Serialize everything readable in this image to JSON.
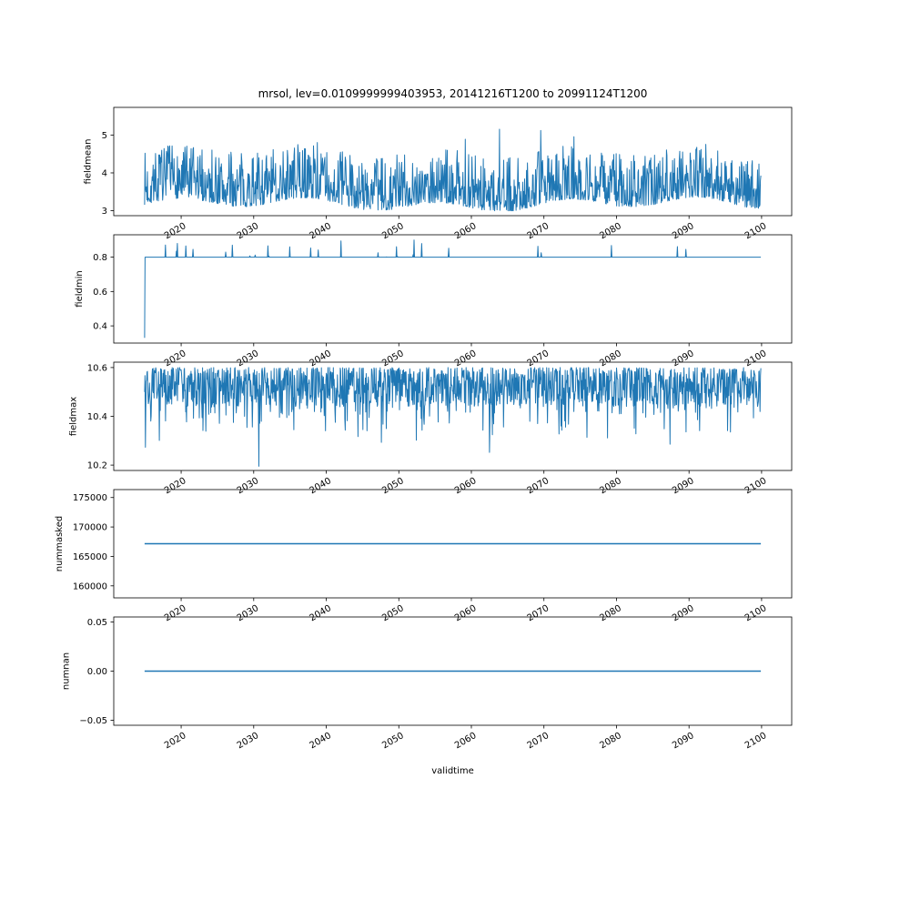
{
  "figure": {
    "title": "mrsol, lev=0.0109999999403953, 20141216T1200 to 20991124T1200",
    "xlabel": "validtime",
    "line_color": "#1f77b4",
    "background_color": "#ffffff",
    "text_color": "#000000",
    "x_axis": {
      "xlim": [
        2010.71,
        2104.15
      ],
      "ticks": [
        2020,
        2030,
        2040,
        2050,
        2060,
        2070,
        2080,
        2090,
        2100
      ],
      "tick_labels": [
        "2020",
        "2030",
        "2040",
        "2050",
        "2060",
        "2070",
        "2080",
        "2090",
        "2100"
      ],
      "data_start": 2014.96,
      "data_end": 2099.9
    }
  },
  "chart_data": [
    {
      "type": "line",
      "ylabel": "fieldmean",
      "yticks": [
        3,
        4,
        5
      ],
      "ytick_labels": [
        "3",
        "4",
        "5"
      ],
      "ylim": [
        2.87,
        5.73
      ],
      "summary": {
        "y_min": 3.0,
        "y_max": 5.6,
        "y_typical": 3.8,
        "shape": "dense noisy time series between ~3.0 and ~4.8 with occasional peaks to ~5.6"
      },
      "series": [
        {
          "name": "fieldmean",
          "gen": {
            "kind": "noisy",
            "seed": 7,
            "n": 1300,
            "base": 3.16,
            "amp": 1.42,
            "pow": 1.9,
            "slow_amp": 0.13,
            "spike_prob": 0.035,
            "spike_amp": 1.0,
            "clip_min": 3.0,
            "clip_max": 5.62
          }
        }
      ]
    },
    {
      "type": "line",
      "ylabel": "fieldmin",
      "yticks": [
        0.4,
        0.6,
        0.8
      ],
      "ytick_labels": [
        "0.4",
        "0.6",
        "0.8"
      ],
      "ylim": [
        0.3,
        0.93
      ],
      "summary": {
        "start_value": 0.33,
        "flat_value": 0.8,
        "spike_max": 0.9,
        "shape": "starts at ~0.33, jumps to 0.8, then flat at 0.8 with sparse short upward spikes up to ~0.9"
      },
      "series": [
        {
          "name": "fieldmin",
          "gen": {
            "kind": "flat_spikes",
            "seed": 11,
            "n": 1300,
            "start_value": 0.33,
            "flat": 0.8,
            "spike_prob": 0.018,
            "spike_amp": 0.08,
            "big_spike_prob": 0.004,
            "big_spike_amp": 0.1,
            "clip_max": 0.9
          }
        }
      ]
    },
    {
      "type": "line",
      "ylabel": "fieldmax",
      "yticks": [
        10.2,
        10.4,
        10.6
      ],
      "ytick_labels": [
        "10.2",
        "10.4",
        "10.6"
      ],
      "ylim": [
        10.178,
        10.622
      ],
      "summary": {
        "y_max": 10.6,
        "y_min": 10.2,
        "shape": "very dense band between ~10.45 and 10.6 (flat top at 10.6) with frequent downward spikes to ~10.3 and rare spikes to ~10.2"
      },
      "series": [
        {
          "name": "fieldmax",
          "gen": {
            "kind": "noisy_top",
            "seed": 23,
            "n": 1500,
            "base": 10.6,
            "amp": 0.16,
            "pow": 1.4,
            "dip_prob": 0.18,
            "dip_amp": 0.15,
            "big_dip_prob": 0.015,
            "big_dip_amp": 0.25,
            "clip_min": 10.195,
            "clip_max": 10.6
          }
        }
      ]
    },
    {
      "type": "line",
      "ylabel": "nummasked",
      "yticks": [
        160000,
        165000,
        170000,
        175000
      ],
      "ytick_labels": [
        "160000",
        "165000",
        "170000",
        "175000"
      ],
      "ylim": [
        157960,
        176350
      ],
      "summary": {
        "constant_value": 167155,
        "shape": "perfectly flat horizontal line at ~167000"
      },
      "series": [
        {
          "name": "nummasked",
          "gen": {
            "kind": "constant",
            "n": 2,
            "value": 167155
          }
        }
      ]
    },
    {
      "type": "line",
      "ylabel": "numnan",
      "yticks": [
        -0.05,
        0.0,
        0.05
      ],
      "ytick_labels": [
        "−0.05",
        "0.00",
        "0.05"
      ],
      "ylim": [
        -0.055,
        0.055
      ],
      "summary": {
        "constant_value": 0,
        "shape": "perfectly flat horizontal line at 0"
      },
      "series": [
        {
          "name": "numnan",
          "gen": {
            "kind": "constant",
            "n": 2,
            "value": 0
          }
        }
      ]
    }
  ]
}
